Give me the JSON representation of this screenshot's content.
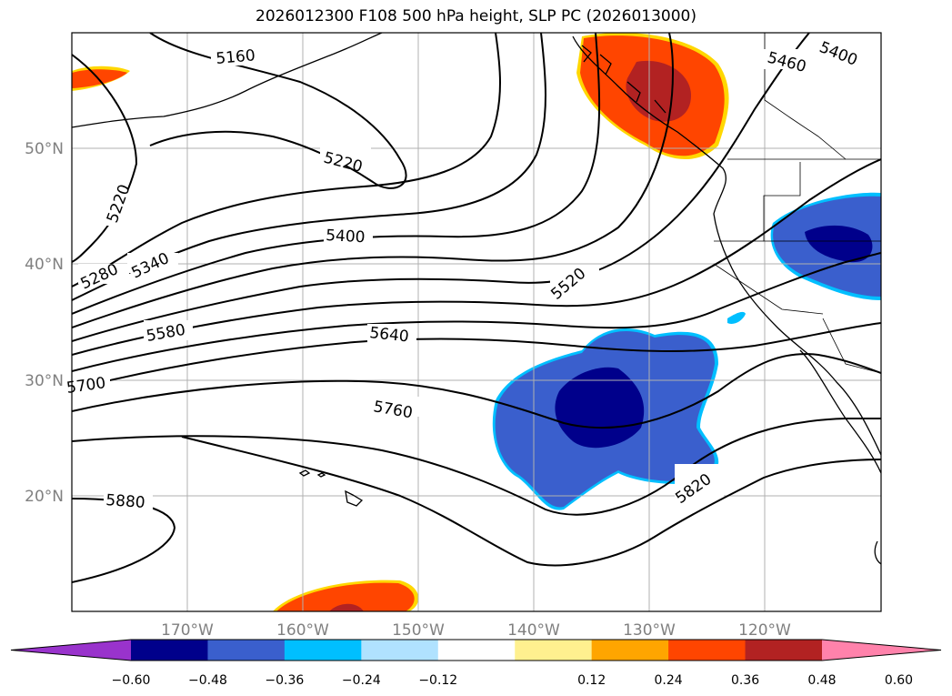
{
  "title": "2026012300 F108 500 hPa height, SLP PC (2026013000)",
  "lon_ticks": [
    "170°W",
    "160°W",
    "150°W",
    "140°W",
    "130°W",
    "120°W"
  ],
  "lat_ticks": [
    "50°N",
    "40°N",
    "30°N",
    "20°N"
  ],
  "contour_labels": [
    "5160",
    "5220",
    "5220",
    "5280",
    "5340",
    "5400",
    "5400",
    "5460",
    "5520",
    "5580",
    "5640",
    "5700",
    "5760",
    "5820",
    "5880"
  ],
  "colorbar": {
    "colors": [
      "#9933cc",
      "#00008b",
      "#3a5fcd",
      "#00bfff",
      "#b0e2ff",
      "#ffffff",
      "#fff08f",
      "#ffa500",
      "#ff4500",
      "#b22222",
      "#ff82ab"
    ],
    "labels": [
      "−0.60",
      "−0.48",
      "−0.36",
      "−0.24",
      "−0.12",
      "0.12",
      "0.24",
      "0.36",
      "0.48",
      "0.60"
    ]
  }
}
